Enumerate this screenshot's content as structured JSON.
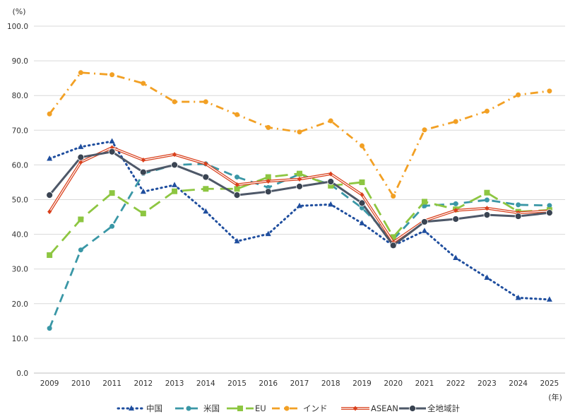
{
  "chart_data": {
    "type": "line",
    "ylabel": "(%)",
    "xlabel": "(年)",
    "ylim": [
      0,
      100
    ],
    "ytick_labels": [
      "0.0",
      "10.0",
      "20.0",
      "30.0",
      "40.0",
      "50.0",
      "60.0",
      "70.0",
      "80.0",
      "90.0",
      "100.0"
    ],
    "categories": [
      "2009",
      "2010",
      "2011",
      "2012",
      "2013",
      "2014",
      "2015",
      "2016",
      "2017",
      "2018",
      "2019",
      "2020",
      "2021",
      "2022",
      "2023",
      "2024",
      "2025"
    ],
    "grid": true,
    "legend_position": "bottom",
    "series": [
      {
        "name": "中国",
        "color": "#1f4e9e",
        "marker": "triangle",
        "dash": "dotted",
        "values": [
          61.8,
          65.2,
          66.8,
          52.3,
          54.2,
          46.6,
          38.0,
          40.1,
          48.2,
          48.6,
          43.2,
          36.7,
          41.0,
          33.2,
          27.5,
          21.7,
          21.2
        ]
      },
      {
        "name": "米国",
        "color": "#3a97a6",
        "marker": "circle",
        "dash": "dashed",
        "values": [
          12.9,
          35.5,
          42.3,
          57.5,
          60.0,
          60.3,
          56.5,
          53.5,
          57.3,
          54.3,
          47.6,
          38.5,
          48.2,
          48.8,
          49.9,
          48.5,
          48.3
        ]
      },
      {
        "name": "EU",
        "color": "#8dc641",
        "marker": "square",
        "dash": "longdash",
        "values": [
          34.0,
          44.3,
          51.9,
          46.0,
          52.4,
          53.1,
          53.1,
          56.5,
          57.5,
          54.0,
          55.0,
          39.2,
          49.4,
          47.2,
          52.0,
          46.5,
          47.0
        ]
      },
      {
        "name": "インド",
        "color": "#f2a024",
        "marker": "circle",
        "dash": "dashdot",
        "values": [
          74.7,
          86.6,
          86.0,
          83.5,
          78.2,
          78.2,
          74.5,
          70.8,
          69.5,
          72.7,
          65.5,
          51.0,
          70.1,
          72.5,
          75.5,
          80.2,
          81.3
        ]
      },
      {
        "name": "ASEAN",
        "color": "#d9401c",
        "marker": "diamond",
        "dash": "double",
        "values": [
          46.5,
          60.8,
          65.0,
          61.4,
          63.0,
          60.3,
          54.3,
          55.3,
          55.9,
          57.4,
          51.4,
          37.7,
          43.9,
          46.9,
          47.5,
          46.2,
          46.7
        ]
      },
      {
        "name": "全地域計",
        "color": "#4e5868",
        "marker": "circle",
        "dash": "solid",
        "values": [
          51.3,
          62.2,
          63.8,
          57.9,
          60.0,
          56.5,
          51.3,
          52.3,
          53.8,
          55.2,
          49.0,
          36.8,
          43.6,
          44.4,
          45.6,
          45.2,
          46.2
        ]
      }
    ]
  }
}
